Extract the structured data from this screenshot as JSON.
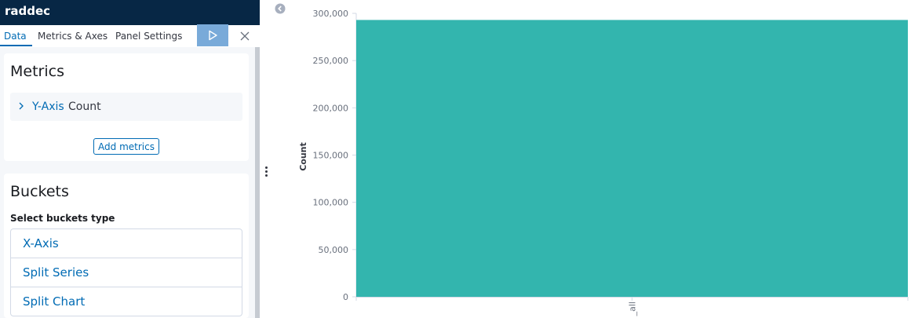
{
  "editor": {
    "title": "raddec",
    "tabs": [
      {
        "label": "Data",
        "active": true
      },
      {
        "label": "Metrics & Axes",
        "active": false
      },
      {
        "label": "Panel Settings",
        "active": false
      }
    ],
    "apply_icon": "play-icon",
    "discard_icon": "close-icon"
  },
  "metrics": {
    "title": "Metrics",
    "items": [
      {
        "label": "Y-Axis",
        "aggregation": "Count",
        "icon": "chevron-right-icon"
      }
    ],
    "add_label": "Add metrics"
  },
  "buckets": {
    "title": "Buckets",
    "select_label": "Select buckets type",
    "types": [
      "X-Axis",
      "Split Series",
      "Split Chart"
    ]
  },
  "colors": {
    "header_bg": "#072745",
    "accent": "#006bb4",
    "apply_bg": "#79aad9",
    "bar": "#33b5ae"
  },
  "chart_data": {
    "type": "bar",
    "categories": [
      "_all"
    ],
    "values": [
      293000
    ],
    "ylabel": "Count",
    "xlabel": "",
    "ylim": [
      0,
      300000
    ],
    "yticks": [
      0,
      50000,
      100000,
      150000,
      200000,
      250000,
      300000
    ],
    "ytick_labels": [
      "0",
      "50,000",
      "100,000",
      "150,000",
      "200,000",
      "250,000",
      "300,000"
    ],
    "legend": "none",
    "grid": false
  }
}
